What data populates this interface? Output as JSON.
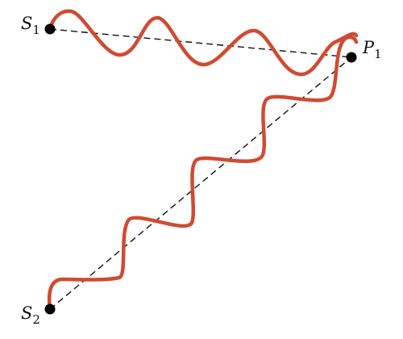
{
  "labels": {
    "s1": {
      "main": "S",
      "sub": "1"
    },
    "s2": {
      "main": "S",
      "sub": "2"
    },
    "p1": {
      "main": "P",
      "sub": "1"
    }
  },
  "colors": {
    "wave": "#d14a32",
    "line": "#111111",
    "point": "#000000"
  }
}
